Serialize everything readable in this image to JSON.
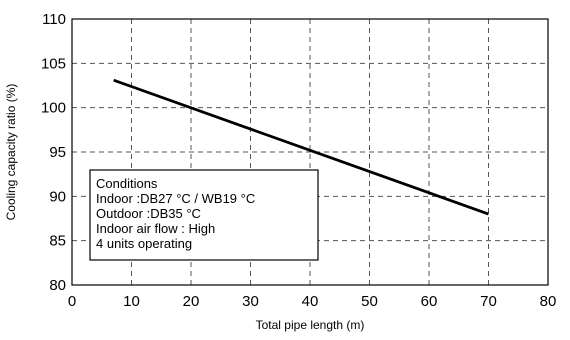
{
  "chart_data": {
    "type": "line",
    "title": "",
    "xlabel": "Total pipe length (m)",
    "ylabel": "Cooling capacity ratio (%)",
    "xlim": [
      0,
      80
    ],
    "ylim": [
      80,
      110
    ],
    "x_ticks": [
      0,
      10,
      20,
      30,
      40,
      50,
      60,
      70,
      80
    ],
    "y_ticks": [
      80,
      85,
      90,
      95,
      100,
      105,
      110
    ],
    "grid": true,
    "series": [
      {
        "x": [
          7,
          70
        ],
        "y": [
          103.1,
          88.0
        ]
      }
    ],
    "annotation_lines": [
      "Conditions",
      "Indoor :DB27 °C / WB19 °C",
      "Outdoor :DB35 °C",
      "Indoor air flow : High",
      "4 units operating"
    ]
  }
}
